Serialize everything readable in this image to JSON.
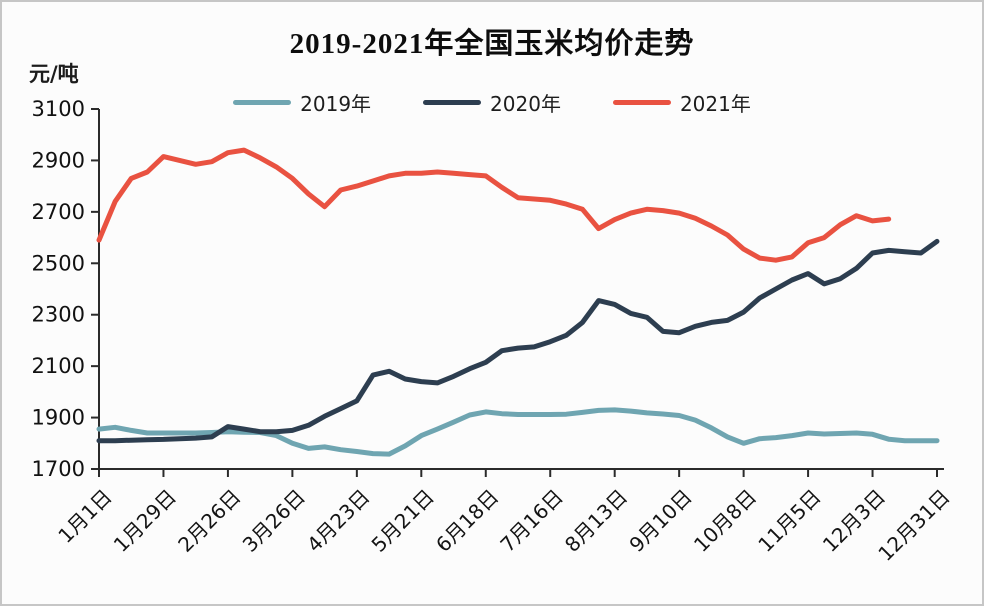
{
  "page": {
    "title": "2019-2021年全国玉米均价走势",
    "y_unit_label": "元/吨"
  },
  "chart_data": {
    "type": "line",
    "title": "2019-2021年全国玉米均价走势",
    "ylabel": "元/吨",
    "ylim": [
      1700,
      3100
    ],
    "yticks": [
      1700,
      1900,
      2100,
      2300,
      2500,
      2700,
      2900,
      3100
    ],
    "x_tick_labels": [
      "1月1日",
      "1月29日",
      "2月26日",
      "3月26日",
      "4月23日",
      "5月21日",
      "6月18日",
      "7月16日",
      "8月13日",
      "9月10日",
      "10月8日",
      "11月5日",
      "12月3日",
      "12月31日"
    ],
    "x_tick_interval": 4,
    "n_points": 53,
    "grid": false,
    "legend_position": "top",
    "axis_color": "#2b2b2b",
    "series": [
      {
        "name": "2019年",
        "color": "#6fa5b1",
        "values": [
          1855,
          1862,
          1850,
          1840,
          1840,
          1840,
          1840,
          1842,
          1845,
          1843,
          1842,
          1830,
          1800,
          1780,
          1786,
          1775,
          1768,
          1760,
          1758,
          1790,
          1830,
          1855,
          1882,
          1910,
          1922,
          1915,
          1912,
          1912,
          1912,
          1913,
          1920,
          1928,
          1930,
          1925,
          1918,
          1914,
          1908,
          1890,
          1860,
          1825,
          1800,
          1818,
          1822,
          1830,
          1840,
          1836,
          1838,
          1840,
          1835,
          1816,
          1810,
          1810,
          1810
        ]
      },
      {
        "name": "2020年",
        "color": "#2d3e50",
        "values": [
          1810,
          1810,
          1812,
          1814,
          1815,
          1818,
          1820,
          1825,
          1865,
          1855,
          1845,
          1845,
          1850,
          1870,
          1905,
          1935,
          1965,
          2065,
          2080,
          2050,
          2040,
          2035,
          2060,
          2090,
          2115,
          2160,
          2170,
          2175,
          2195,
          2220,
          2270,
          2355,
          2340,
          2305,
          2290,
          2235,
          2230,
          2255,
          2270,
          2278,
          2310,
          2365,
          2400,
          2435,
          2460,
          2420,
          2440,
          2480,
          2540,
          2550,
          2545,
          2540,
          2585
        ]
      },
      {
        "name": "2021年",
        "color": "#e95241",
        "values": [
          2590,
          2740,
          2830,
          2855,
          2915,
          2900,
          2885,
          2895,
          2930,
          2940,
          2910,
          2875,
          2830,
          2770,
          2720,
          2785,
          2800,
          2820,
          2840,
          2850,
          2850,
          2855,
          2850,
          2845,
          2840,
          2795,
          2755,
          2750,
          2745,
          2730,
          2710,
          2635,
          2670,
          2695,
          2710,
          2705,
          2695,
          2675,
          2645,
          2610,
          2555,
          2520,
          2512,
          2525,
          2580,
          2600,
          2650,
          2685,
          2665,
          2672
        ]
      }
    ]
  }
}
